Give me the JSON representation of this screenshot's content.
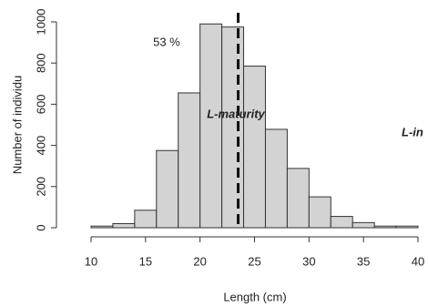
{
  "chart_data": {
    "type": "histogram",
    "xlabel": "Length (cm)",
    "ylabel": "Number of individu",
    "bins": [
      10,
      12,
      14,
      16,
      18,
      20,
      22,
      24,
      26,
      28,
      30,
      32,
      34,
      36,
      38,
      40
    ],
    "values": [
      8,
      20,
      85,
      375,
      655,
      990,
      975,
      785,
      478,
      288,
      150,
      55,
      25,
      8,
      8
    ],
    "color": "#d3d3d3",
    "xlim": [
      10,
      40
    ],
    "xticks": [
      10,
      15,
      20,
      25,
      30,
      35,
      40
    ],
    "ylim": [
      0,
      1000
    ],
    "yticks": [
      0,
      200,
      400,
      600,
      800,
      1000
    ],
    "vline": 23.5,
    "annotations": [
      "53 %",
      "L-maturity",
      "L-in"
    ]
  }
}
